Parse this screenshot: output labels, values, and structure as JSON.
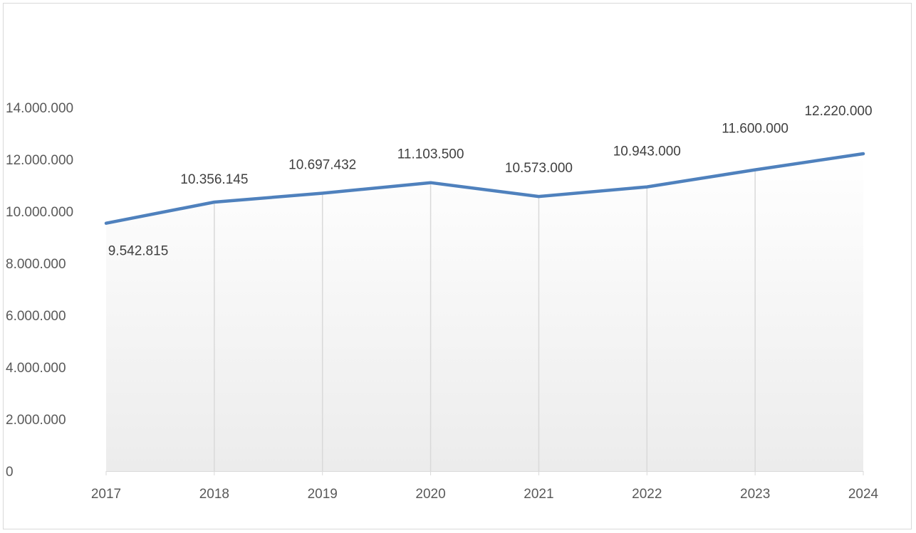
{
  "chart_data": {
    "type": "area",
    "title": "",
    "xlabel": "",
    "ylabel": "",
    "x": [
      "2017",
      "2018",
      "2019",
      "2020",
      "2021",
      "2022",
      "2023",
      "2024"
    ],
    "series": [
      {
        "values": [
          9542815,
          10356145,
          10697432,
          11103500,
          10573000,
          10943000,
          11600000,
          12220000
        ],
        "labels": [
          "9.542.815",
          "10.356.145",
          "10.697.432",
          "11.103.500",
          "10.573.000",
          "10.943.000",
          "11.600.000",
          "12.220.000"
        ]
      }
    ],
    "ylim": [
      0,
      14000000
    ],
    "y_ticks": [
      {
        "value": 0,
        "label": "0"
      },
      {
        "value": 2000000,
        "label": "2.000.000"
      },
      {
        "value": 4000000,
        "label": "4.000.000"
      },
      {
        "value": 6000000,
        "label": "6.000.000"
      },
      {
        "value": 8000000,
        "label": "8.000.000"
      },
      {
        "value": 10000000,
        "label": "10.000.000"
      },
      {
        "value": 12000000,
        "label": "12.000.000"
      },
      {
        "value": 14000000,
        "label": "14.000.000"
      }
    ],
    "line_color": "#4f81bd",
    "fill_gradient": [
      "#ffffff",
      "#ececec"
    ],
    "grid": false,
    "drop_lines": true,
    "legend": "none"
  }
}
